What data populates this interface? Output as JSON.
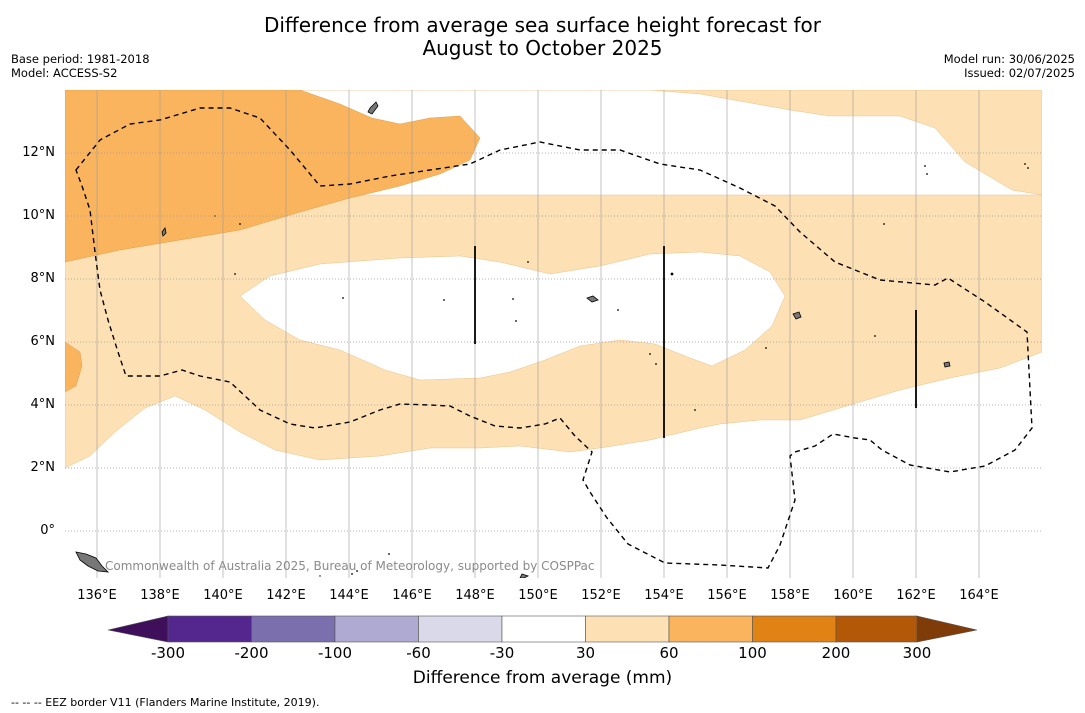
{
  "header": {
    "title_line1": "Difference from average sea surface height forecast for",
    "title_line2": "August to October 2025",
    "base_period": "Base period: 1981-2018",
    "model": "Model: ACCESS-S2",
    "model_run": "Model run: 30/06/2025",
    "issued": "Issued: 02/07/2025"
  },
  "map": {
    "lat_labels": [
      "12°N",
      "10°N",
      "8°N",
      "6°N",
      "4°N",
      "2°N",
      "0°"
    ],
    "lon_labels": [
      "136°E",
      "138°E",
      "140°E",
      "142°E",
      "144°E",
      "146°E",
      "148°E",
      "150°E",
      "152°E",
      "154°E",
      "156°E",
      "158°E",
      "160°E",
      "162°E",
      "164°E"
    ],
    "copyright": "Commonwealth of Australia 2025, Bureau of Meteorology, supported by COSPPac",
    "colors": {
      "band_30_60": "#fde0b4",
      "band_60_100": "#f9b45d",
      "neutral": "#ffffff",
      "eez_line": "#000000"
    }
  },
  "colorbar": {
    "title": "Difference from average (mm)",
    "tick_labels": [
      "-300",
      "-200",
      "-100",
      "-60",
      "-30",
      "30",
      "60",
      "100",
      "200",
      "300"
    ],
    "colors": [
      "#3f0f5c",
      "#54278f",
      "#7b6fae",
      "#aeaad2",
      "#d9d9ea",
      "#ffffff",
      "#fde0b4",
      "#f9b45d",
      "#e08214",
      "#b35806",
      "#7f3b08"
    ]
  },
  "footnote": "--  --  -- EEZ border V11 (Flanders Marine Institute, 2019)."
}
